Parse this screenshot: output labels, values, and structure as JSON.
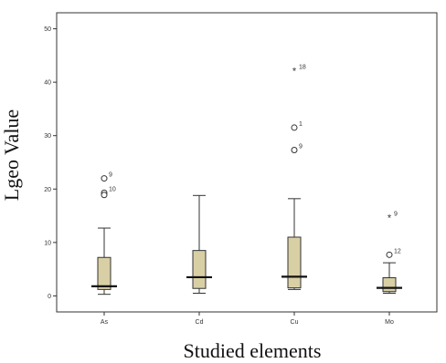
{
  "chart_data": {
    "type": "box",
    "title": "",
    "xlabel": "Studied elements",
    "ylabel": "Lgeo Value",
    "ylim": [
      -3,
      53
    ],
    "y_ticks": [
      0,
      10,
      20,
      30,
      40,
      50
    ],
    "grid": false,
    "legend": "none",
    "box_fill": "#d9cfa5",
    "box_stroke": "#333333",
    "categories": [
      "As",
      "Cd",
      "Cu",
      "Mo"
    ],
    "boxes": [
      {
        "category": "As",
        "whisker_low": 0.3,
        "q1": 1.2,
        "median": 1.8,
        "q3": 7.2,
        "whisker_high": 12.7
      },
      {
        "category": "Cd",
        "whisker_low": 0.5,
        "q1": 1.4,
        "median": 3.5,
        "q3": 8.5,
        "whisker_high": 18.8
      },
      {
        "category": "Cu",
        "whisker_low": 1.2,
        "q1": 1.5,
        "median": 3.6,
        "q3": 11.0,
        "whisker_high": 18.2
      },
      {
        "category": "Mo",
        "whisker_low": 0.5,
        "q1": 0.8,
        "median": 1.5,
        "q3": 3.4,
        "whisker_high": 6.2
      }
    ],
    "outliers": [
      {
        "category": "As",
        "value": 22.0,
        "marker": "circle",
        "label": "9"
      },
      {
        "category": "As",
        "value": 19.3,
        "marker": "circle",
        "label": "10"
      },
      {
        "category": "As",
        "value": 18.9,
        "marker": "circle",
        "label": ""
      },
      {
        "category": "Cu",
        "value": 42.2,
        "marker": "star",
        "label": "18"
      },
      {
        "category": "Cu",
        "value": 31.5,
        "marker": "circle",
        "label": "1"
      },
      {
        "category": "Cu",
        "value": 27.3,
        "marker": "circle",
        "label": "9"
      },
      {
        "category": "Mo",
        "value": 14.7,
        "marker": "star",
        "label": "9"
      },
      {
        "category": "Mo",
        "value": 7.7,
        "marker": "circle",
        "label": "12"
      }
    ]
  }
}
